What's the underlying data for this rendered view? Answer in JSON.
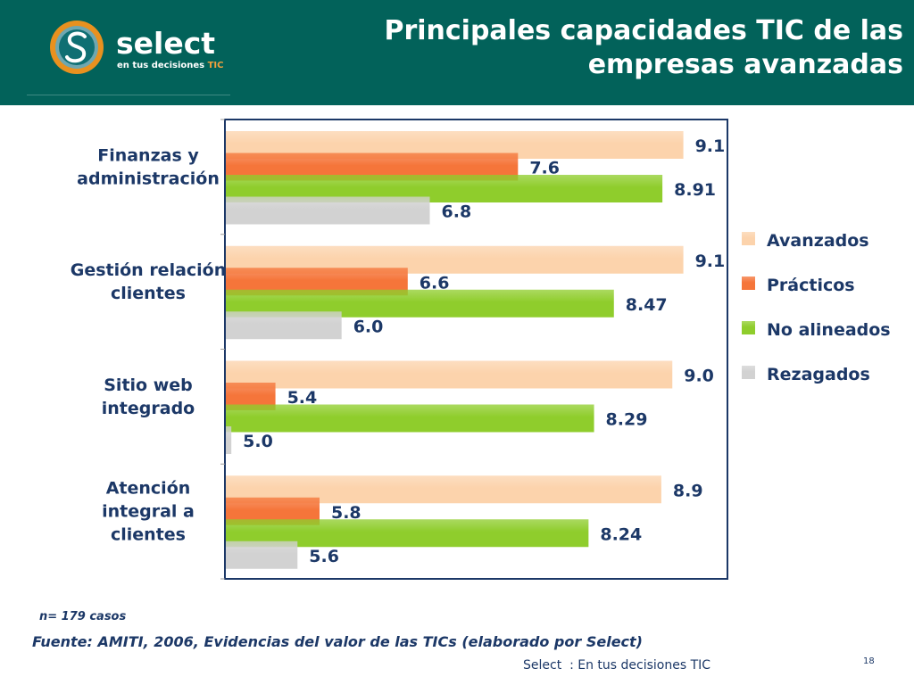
{
  "header": {
    "logo_word": "select",
    "logo_tag_main": "en tus decisiones",
    "logo_tag_accent": "TIC",
    "title_line1": "Principales capacidades TIC de las",
    "title_line2": "empresas avanzadas"
  },
  "chart_data": {
    "type": "bar",
    "orientation": "horizontal",
    "categories": [
      [
        "Finanzas y",
        "administración"
      ],
      [
        "Gestión relación",
        "clientes"
      ],
      [
        "Sitio web",
        "integrado"
      ],
      [
        "Atención",
        "integral a",
        "clientes"
      ]
    ],
    "series": [
      {
        "name": "Avanzados",
        "color": "#fcd3ac",
        "values": [
          9.1,
          9.1,
          9.0,
          8.9
        ],
        "labels": [
          "9.1",
          "9.1",
          "9.0",
          "8.9"
        ]
      },
      {
        "name": "Prácticos",
        "color": "#f5753a",
        "values": [
          7.6,
          6.6,
          5.4,
          5.8
        ],
        "labels": [
          "7.6",
          "6.6",
          "5.4",
          "5.8"
        ]
      },
      {
        "name": "No alineados",
        "color": "#8fcd2c",
        "values": [
          8.91,
          8.47,
          8.29,
          8.24
        ],
        "labels": [
          "8.91",
          "8.47",
          "8.29",
          "8.24"
        ]
      },
      {
        "name": "Rezagados",
        "color": "#d2d2d2",
        "values": [
          6.8,
          6.0,
          5.0,
          5.6
        ],
        "labels": [
          "6.8",
          "6.0",
          "5.0",
          "5.6"
        ]
      }
    ],
    "xlim": [
      4.95,
      9.5
    ],
    "legend": "right",
    "grid": false
  },
  "footer": {
    "note": "n= 179 casos",
    "source": "Fuente: AMITI, 2006, Evidencias del valor de las TICs (elaborado por Select)",
    "brand_line": "Select  : En tus decisiones TIC",
    "page_number": "18"
  }
}
